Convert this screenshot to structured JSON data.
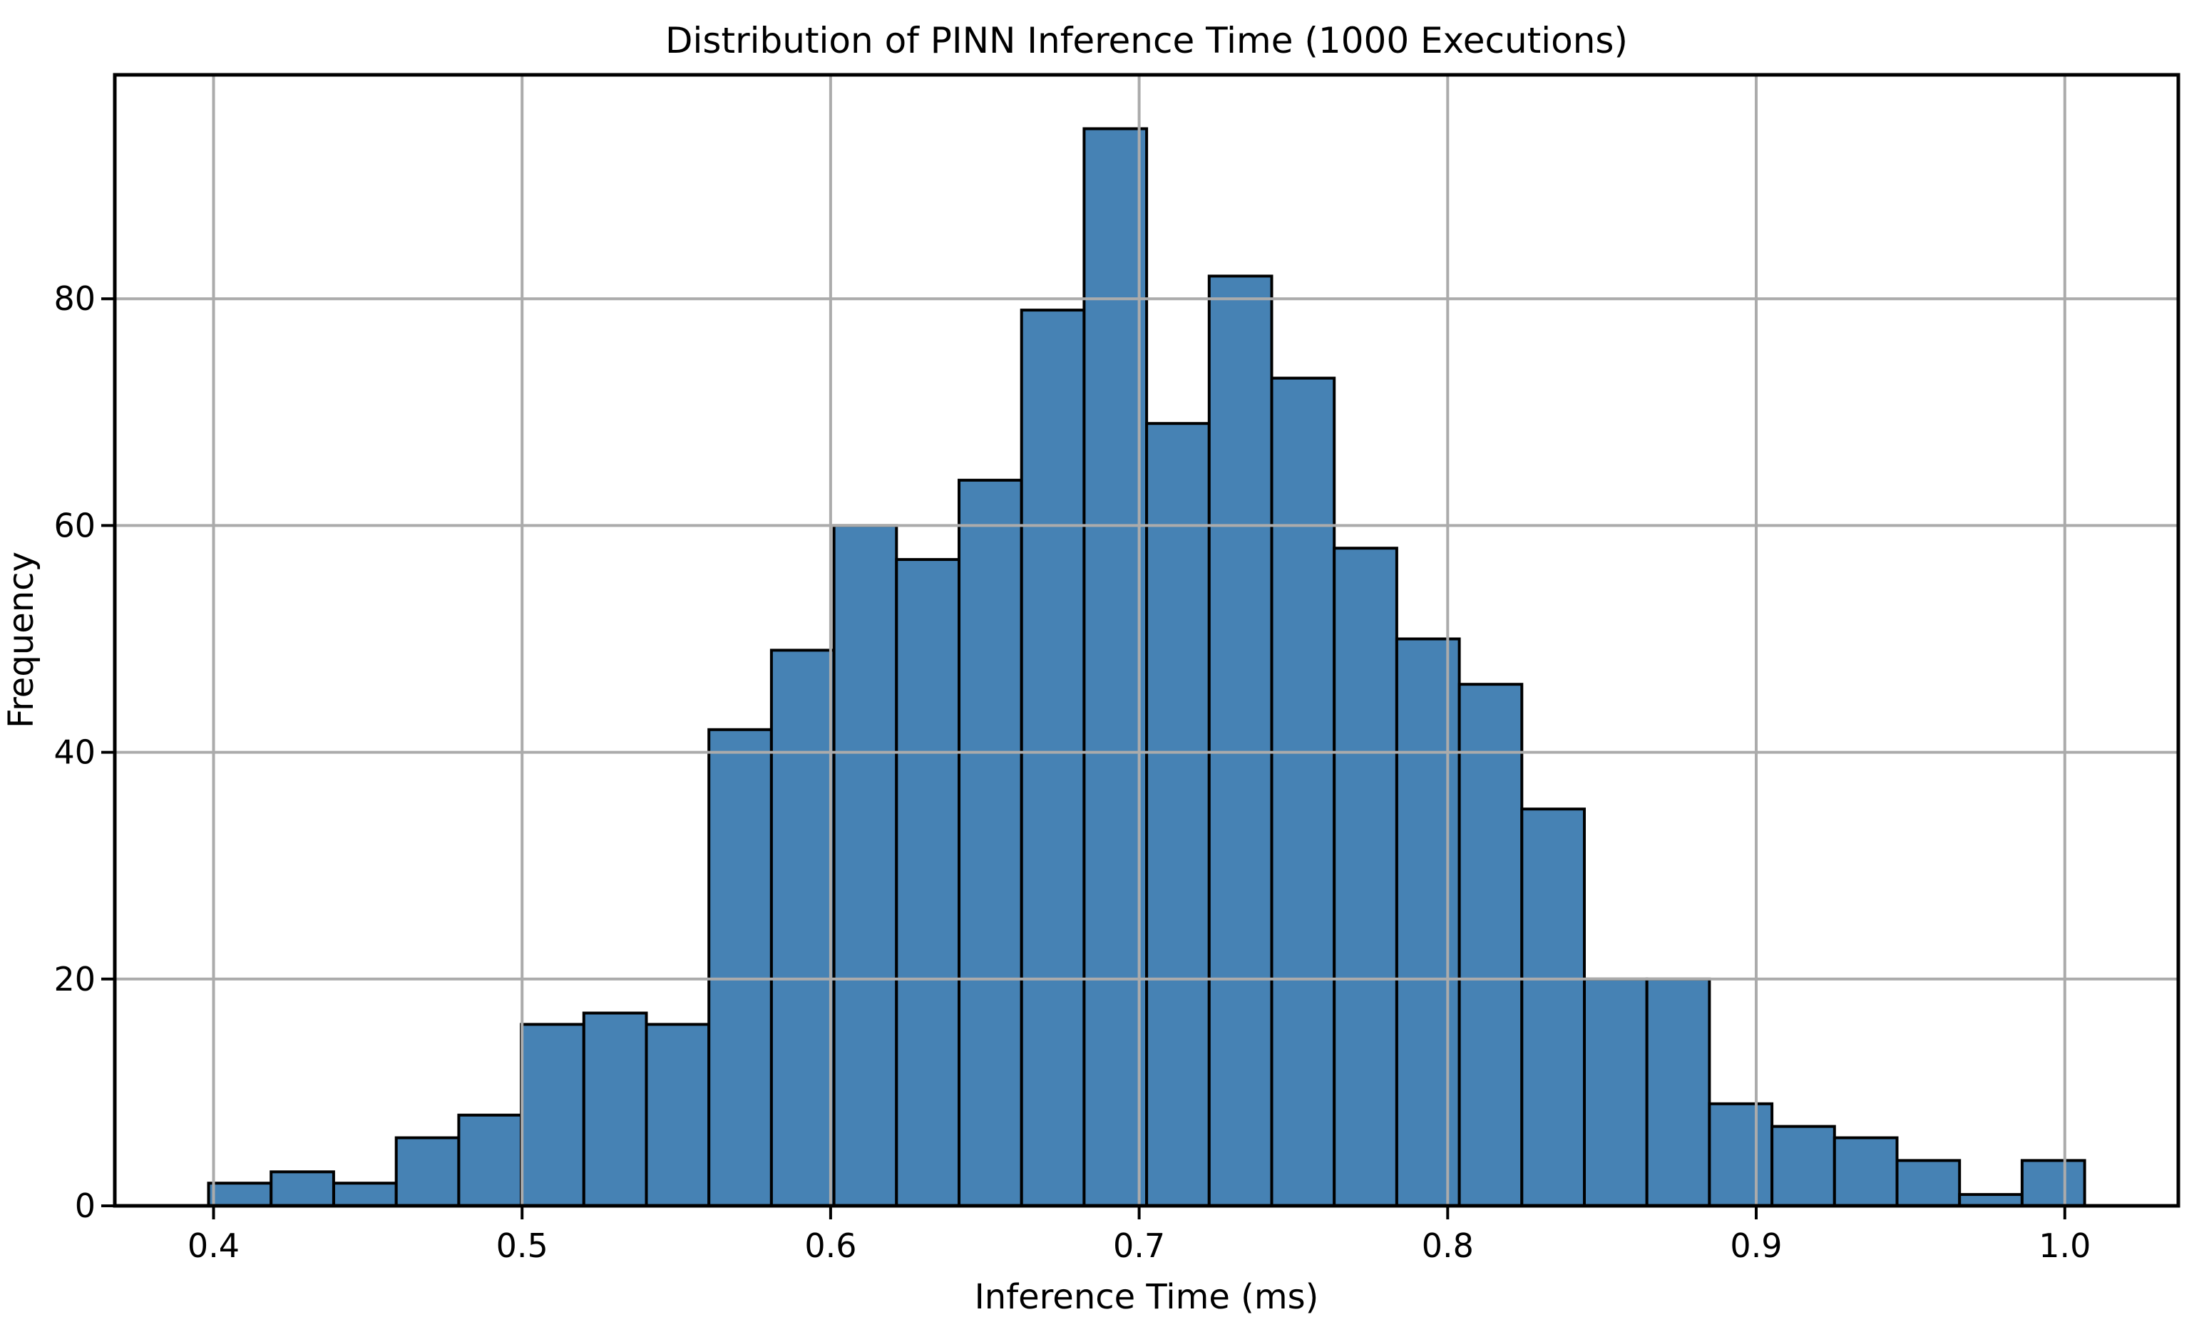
{
  "chart_data": {
    "type": "histogram",
    "title": "Distribution of PINN Inference Time (1000 Executions)",
    "xlabel": "Inference Time (ms)",
    "ylabel": "Frequency",
    "total_executions": 1000,
    "bin_start": 0.3984,
    "bin_width": 0.020268,
    "counts": [
      2,
      3,
      2,
      6,
      8,
      16,
      17,
      16,
      42,
      49,
      60,
      57,
      64,
      79,
      95,
      69,
      82,
      73,
      58,
      50,
      46,
      35,
      20,
      20,
      9,
      7,
      6,
      4,
      1,
      4
    ],
    "x_ticks": [
      0.4,
      0.5,
      0.6,
      0.7,
      0.8,
      0.9,
      1.0
    ],
    "x_tick_labels": [
      "0.4",
      "0.5",
      "0.6",
      "0.7",
      "0.8",
      "0.9",
      "1.0"
    ],
    "y_ticks": [
      0,
      20,
      40,
      60,
      80
    ],
    "y_tick_labels": [
      "0",
      "20",
      "40",
      "60",
      "80"
    ],
    "xlim": [
      0.368,
      1.0368
    ],
    "ylim": [
      0,
      99.75
    ],
    "grid": true,
    "grid_over_bars": true,
    "legend": null,
    "colors": {
      "bar_fill": "#4682B4",
      "bar_edge": "#000000",
      "grid": "#ABABAB",
      "spine": "#000000",
      "text": "#000000",
      "background": "#FFFFFF"
    }
  }
}
